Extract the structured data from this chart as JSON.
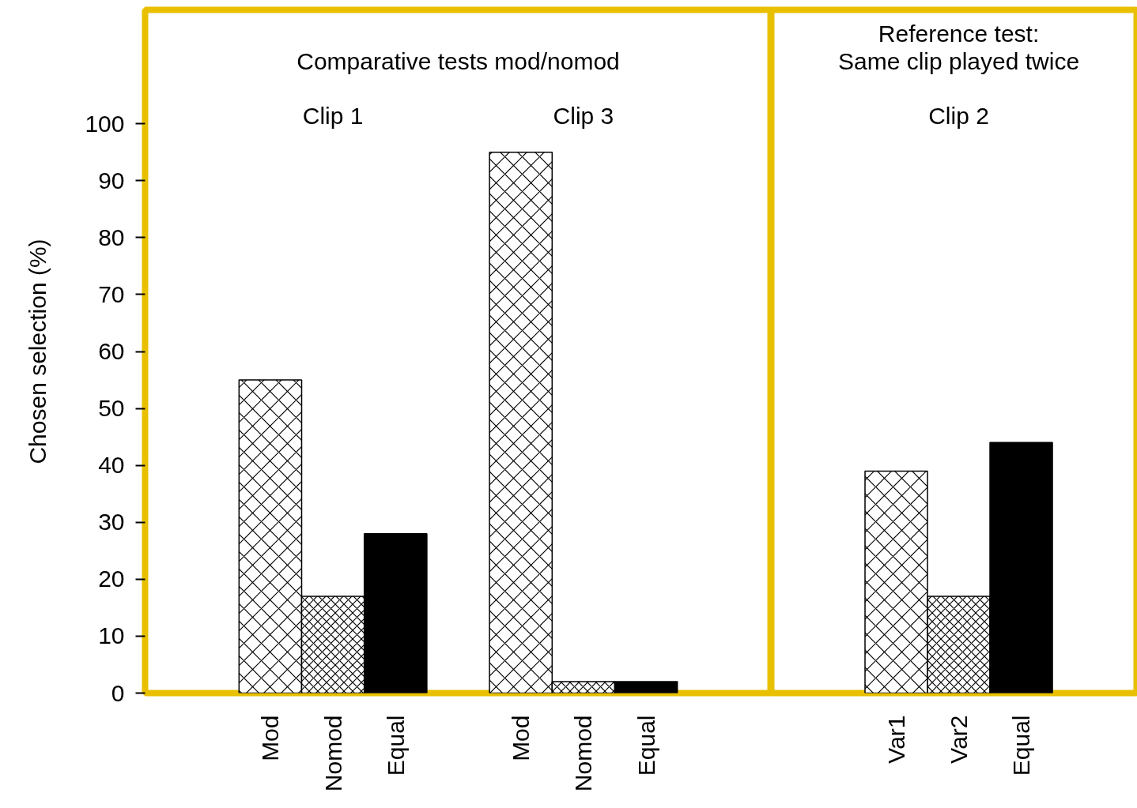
{
  "chart_data": [
    {
      "type": "bar",
      "title": "Comparative tests mod/nomod",
      "ylabel": "Chosen selection (%)",
      "categories": [
        "Mod",
        "Nomod",
        "Equal",
        null,
        "Mod",
        "Nomod",
        "Equal"
      ],
      "series": [
        {
          "color": "#ffffff",
          "values": [
            55,
            null,
            null,
            null,
            95,
            null,
            null
          ]
        },
        {
          "color": "#ffffff",
          "values": [
            null,
            17,
            null,
            null,
            null,
            2,
            null
          ]
        },
        {
          "color": "#000000",
          "values": [
            null,
            null,
            28,
            null,
            null,
            null,
            2
          ]
        }
      ],
      "annotations": [
        "Clip 1",
        "Clip 3"
      ],
      "ylim": [
        0,
        120
      ],
      "yticks": [
        0,
        10,
        20,
        30,
        40,
        50,
        60,
        70,
        80,
        90,
        100
      ],
      "grid": false
    },
    {
      "type": "bar",
      "title": "Reference test:\nSame clip played twice",
      "categories": [
        "Var1",
        "Var2",
        "Equal"
      ],
      "series": [
        {
          "color": "#ffffff",
          "values": [
            39,
            null,
            null
          ]
        },
        {
          "color": "#ffffff",
          "values": [
            null,
            17,
            null
          ]
        },
        {
          "color": "#000000",
          "values": [
            null,
            null,
            44
          ]
        }
      ],
      "annotations": [
        "Clip 2"
      ],
      "ylim": [
        0,
        120
      ],
      "yticks": [
        0,
        10,
        20,
        30,
        40,
        50,
        60,
        70,
        80,
        90,
        100
      ],
      "tick_labels": "x",
      "grid": false
    }
  ]
}
